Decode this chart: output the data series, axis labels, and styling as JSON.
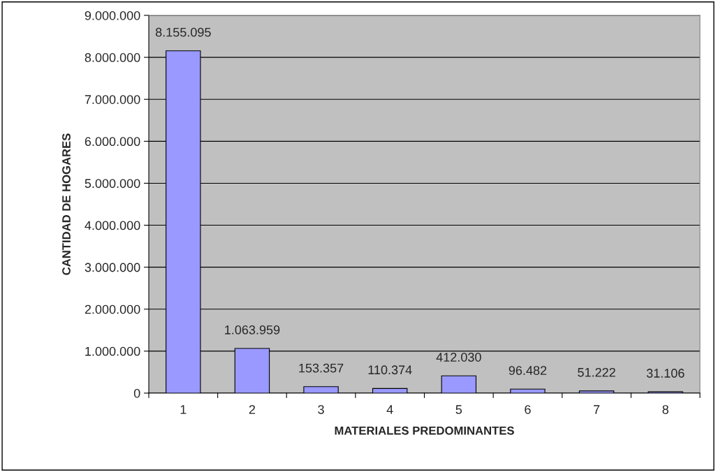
{
  "chart_data": {
    "type": "bar",
    "xlabel": "MATERIALES PREDOMINANTES",
    "ylabel": "CANTIDAD DE HOGARES",
    "categories": [
      "1",
      "2",
      "3",
      "4",
      "5",
      "6",
      "7",
      "8"
    ],
    "values": [
      8155095,
      1063959,
      153357,
      110374,
      412030,
      96482,
      51222,
      31106
    ],
    "value_labels": [
      "8.155.095",
      "1.063.959",
      "153.357",
      "110.374",
      "412.030",
      "96.482",
      "51.222",
      "31.106"
    ],
    "color": "#9999ff",
    "ylim": [
      0,
      9000000
    ],
    "yticks": [
      0,
      {
        "value": 1000000,
        "label": "1.000.000"
      },
      {
        "value": 2000000,
        "label": "2.000.000"
      },
      {
        "value": 3000000,
        "label": "3.000.000"
      },
      {
        "value": 4000000,
        "label": "4.000.000"
      },
      {
        "value": 5000000,
        "label": "5.000.000"
      },
      {
        "value": 6000000,
        "label": "6.000.000"
      },
      {
        "value": 7000000,
        "label": "7.000.000"
      },
      {
        "value": 8000000,
        "label": "8.000.000"
      },
      {
        "value": 9000000,
        "label": "9.000.000"
      }
    ],
    "grid": "y"
  }
}
